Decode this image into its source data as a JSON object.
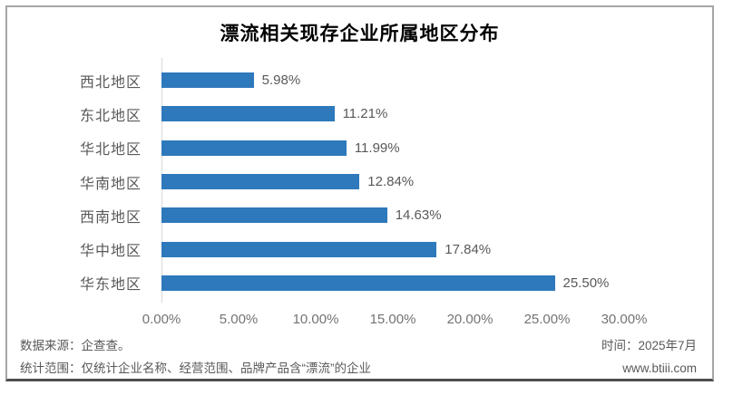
{
  "title": "漂流相关现存企业所属地区分布",
  "chart_data": {
    "type": "bar",
    "orientation": "horizontal",
    "title": "漂流相关现存企业所属地区分布",
    "categories": [
      "西北地区",
      "东北地区",
      "华北地区",
      "华南地区",
      "西南地区",
      "华中地区",
      "华东地区"
    ],
    "values": [
      5.98,
      11.21,
      11.99,
      12.84,
      14.63,
      17.84,
      25.5
    ],
    "value_labels": [
      "5.98%",
      "11.21%",
      "11.99%",
      "12.84%",
      "14.63%",
      "17.84%",
      "25.50%"
    ],
    "x_ticks": [
      "0.00%",
      "5.00%",
      "10.00%",
      "15.00%",
      "20.00%",
      "25.00%",
      "30.00%"
    ],
    "xlim": [
      0,
      30
    ],
    "bar_color": "#2E79BC",
    "grid": false,
    "legend": false
  },
  "footer": {
    "source_label": "数据来源：企查查。",
    "scope_label": "统计范围：仅统计企业名称、经营范围、品牌产品含“漂流”的企业",
    "time_label": "时间：2025年7月",
    "website": "www.btiii.com"
  },
  "colors": {
    "bar": "#2E79BC",
    "frame_border": "#A6A6A6",
    "bottom_border": "#4D4D4D",
    "axis_line": "#D9D9D9",
    "label_text": "#595959",
    "tick_text": "#737373",
    "title_text": "#000000"
  }
}
